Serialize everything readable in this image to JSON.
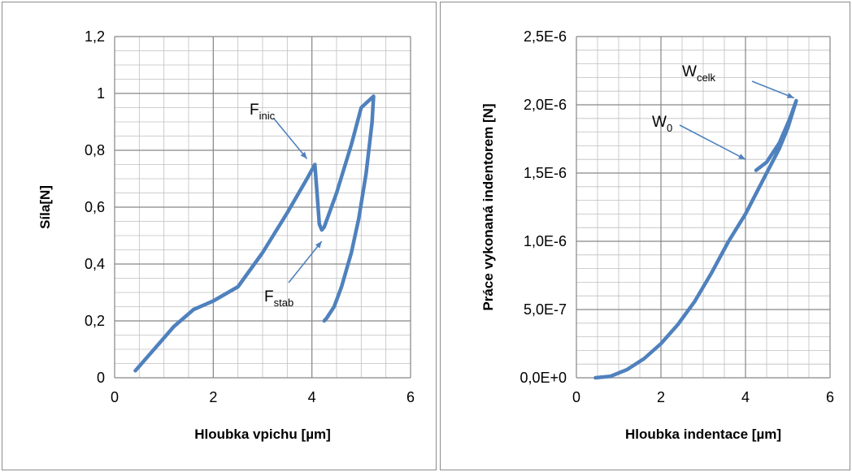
{
  "colors": {
    "series": "#4f81bd",
    "grid": "#bfbfbf",
    "axis": "#868686",
    "annotation_arrow": "#4f81bd"
  },
  "chart_data": [
    {
      "type": "line",
      "title": "",
      "xlabel": "Hloubka vpichu [µm]",
      "ylabel": "Síla[N]",
      "xlim": [
        0,
        6
      ],
      "ylim": [
        0,
        1.2
      ],
      "x_ticks": [
        "0",
        "2",
        "4",
        "6"
      ],
      "y_ticks": [
        "0",
        "0,2",
        "0,4",
        "0,6",
        "0,8",
        "1",
        "1,2"
      ],
      "grid": true,
      "minor_grid": true,
      "series": [
        {
          "x": [
            0.42,
            0.8,
            1.2,
            1.6,
            2.0,
            2.5,
            3.0,
            3.5,
            3.9,
            4.06,
            4.1,
            4.15,
            4.2,
            4.25,
            4.5,
            4.8,
            5.0,
            5.25,
            5.22,
            5.1,
            4.95,
            4.8,
            4.6,
            4.45,
            4.3,
            4.25
          ],
          "y": [
            0.025,
            0.1,
            0.18,
            0.24,
            0.27,
            0.32,
            0.44,
            0.58,
            0.7,
            0.75,
            0.66,
            0.54,
            0.52,
            0.53,
            0.65,
            0.82,
            0.95,
            0.99,
            0.9,
            0.72,
            0.56,
            0.44,
            0.32,
            0.25,
            0.21,
            0.2
          ]
        }
      ],
      "annotations": [
        {
          "main": "F",
          "sub": "inic",
          "target": [
            3.9,
            0.77
          ]
        },
        {
          "main": "F",
          "sub": "stab",
          "target": [
            4.2,
            0.48
          ]
        }
      ]
    },
    {
      "type": "line",
      "title": "",
      "xlabel": "Hloubka indentace [µm]",
      "ylabel": "Práce vykonaná indentorem [N]",
      "xlim": [
        0,
        6
      ],
      "ylim": [
        0,
        2.5e-06
      ],
      "x_ticks": [
        "0",
        "2",
        "4",
        "6"
      ],
      "y_ticks": [
        "0,0E+0",
        "5,0E-7",
        "1,0E-6",
        "1,5E-6",
        "2,0E-6",
        "2,5E-6"
      ],
      "grid": true,
      "minor_grid": true,
      "series": [
        {
          "x": [
            0.45,
            0.8,
            1.2,
            1.6,
            2.0,
            2.4,
            2.8,
            3.2,
            3.6,
            4.0,
            4.2,
            4.5,
            4.8,
            5.0,
            5.2,
            5.05,
            4.8,
            4.5,
            4.25
          ],
          "y": [
            0.0,
            1e-08,
            6e-08,
            1.4e-07,
            2.5e-07,
            3.9e-07,
            5.6e-07,
            7.7e-07,
            1e-06,
            1.2e-06,
            1.32e-06,
            1.5e-06,
            1.68e-06,
            1.83e-06,
            2.03e-06,
            1.9e-06,
            1.72e-06,
            1.58e-06,
            1.52e-06
          ]
        }
      ],
      "annotations": [
        {
          "main": "W",
          "sub": "celk",
          "target": [
            5.15,
            2.05e-06
          ]
        },
        {
          "main": "W",
          "sub": "0",
          "target": [
            4.0,
            1.6e-06
          ]
        }
      ]
    }
  ]
}
